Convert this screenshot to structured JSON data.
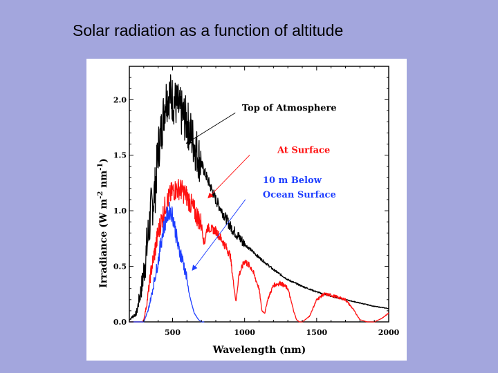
{
  "slide": {
    "title": "Solar radiation as a function of altitude",
    "background": "#a3a6dd"
  },
  "chart_data": {
    "type": "line",
    "title": "",
    "xlabel": "Wavelength (nm)",
    "ylabel": "Irradiance (W m-2 nm-1)",
    "ylabel_parts": {
      "main": "Irradiance (W m",
      "sup1": "-2",
      "mid": " nm",
      "sup2": "-1",
      "end": ")"
    },
    "xlim": [
      200,
      2000
    ],
    "ylim": [
      0,
      2.3
    ],
    "xticks": [
      500,
      1000,
      1500,
      2000
    ],
    "xtick_labels": [
      "500",
      "1000",
      "1500",
      "2000"
    ],
    "yticks": [
      0.0,
      0.5,
      1.0,
      1.5,
      2.0
    ],
    "ytick_labels": [
      "0.0",
      "0.5",
      "1.0",
      "1.5",
      "2.0"
    ],
    "grid": false,
    "series": [
      {
        "name": "Top of Atmosphere",
        "color": "#000000",
        "x": [
          200,
          250,
          290,
          320,
          350,
          380,
          400,
          420,
          450,
          480,
          500,
          530,
          560,
          600,
          650,
          700,
          800,
          900,
          1000,
          1100,
          1200,
          1300,
          1400,
          1500,
          1600,
          1700,
          1800,
          1900,
          2000
        ],
        "y": [
          0.02,
          0.08,
          0.35,
          0.65,
          1.0,
          1.2,
          1.55,
          1.7,
          2.0,
          2.05,
          2.0,
          1.95,
          1.88,
          1.8,
          1.6,
          1.42,
          1.1,
          0.86,
          0.7,
          0.58,
          0.47,
          0.38,
          0.32,
          0.27,
          0.23,
          0.2,
          0.17,
          0.14,
          0.12
        ]
      },
      {
        "name": "At Surface",
        "color": "#ff1010",
        "x": [
          200,
          290,
          300,
          320,
          350,
          400,
          450,
          500,
          550,
          600,
          650,
          700,
          720,
          740,
          800,
          850,
          900,
          920,
          940,
          960,
          1000,
          1050,
          1100,
          1120,
          1140,
          1160,
          1200,
          1250,
          1300,
          1340,
          1360,
          1380,
          1400,
          1450,
          1500,
          1550,
          1600,
          1650,
          1700,
          1750,
          1800,
          1850,
          1900,
          1950,
          2000
        ],
        "y": [
          0,
          0,
          0.02,
          0.15,
          0.45,
          0.8,
          1.05,
          1.18,
          1.2,
          1.13,
          1.0,
          0.88,
          0.7,
          0.85,
          0.82,
          0.72,
          0.6,
          0.38,
          0.18,
          0.42,
          0.55,
          0.48,
          0.3,
          0.1,
          0.08,
          0.2,
          0.33,
          0.35,
          0.3,
          0.1,
          0.02,
          0.0,
          0.0,
          0.05,
          0.2,
          0.25,
          0.24,
          0.22,
          0.2,
          0.12,
          0.02,
          0.0,
          0.0,
          0.03,
          0.08
        ]
      },
      {
        "name": "10 m Below Ocean Surface",
        "color": "#1f3fff",
        "x": [
          200,
          300,
          330,
          360,
          400,
          430,
          460,
          480,
          500,
          520,
          540,
          560,
          580,
          600,
          620,
          650,
          680,
          700,
          720
        ],
        "y": [
          0,
          0,
          0.1,
          0.28,
          0.55,
          0.8,
          0.95,
          1.0,
          0.97,
          0.82,
          0.66,
          0.6,
          0.5,
          0.38,
          0.22,
          0.08,
          0.02,
          0.0,
          0.0
        ]
      }
    ],
    "annotations": [
      {
        "text": "Top of Atmosphere",
        "color": "#000000",
        "x": 1310,
        "y": 1.9,
        "arrow_to": [
          600,
          1.61
        ]
      },
      {
        "text": "At Surface",
        "color": "#ff1010",
        "x": 1410,
        "y": 1.52,
        "arrow_to": [
          750,
          1.12
        ]
      },
      {
        "text": "10 m Below",
        "color": "#1f3fff",
        "x": 1330,
        "y": 1.25
      },
      {
        "text": "Ocean Surface",
        "color": "#1f3fff",
        "x": 1380,
        "y": 1.12,
        "arrow_to": [
          640,
          0.47
        ]
      }
    ]
  }
}
